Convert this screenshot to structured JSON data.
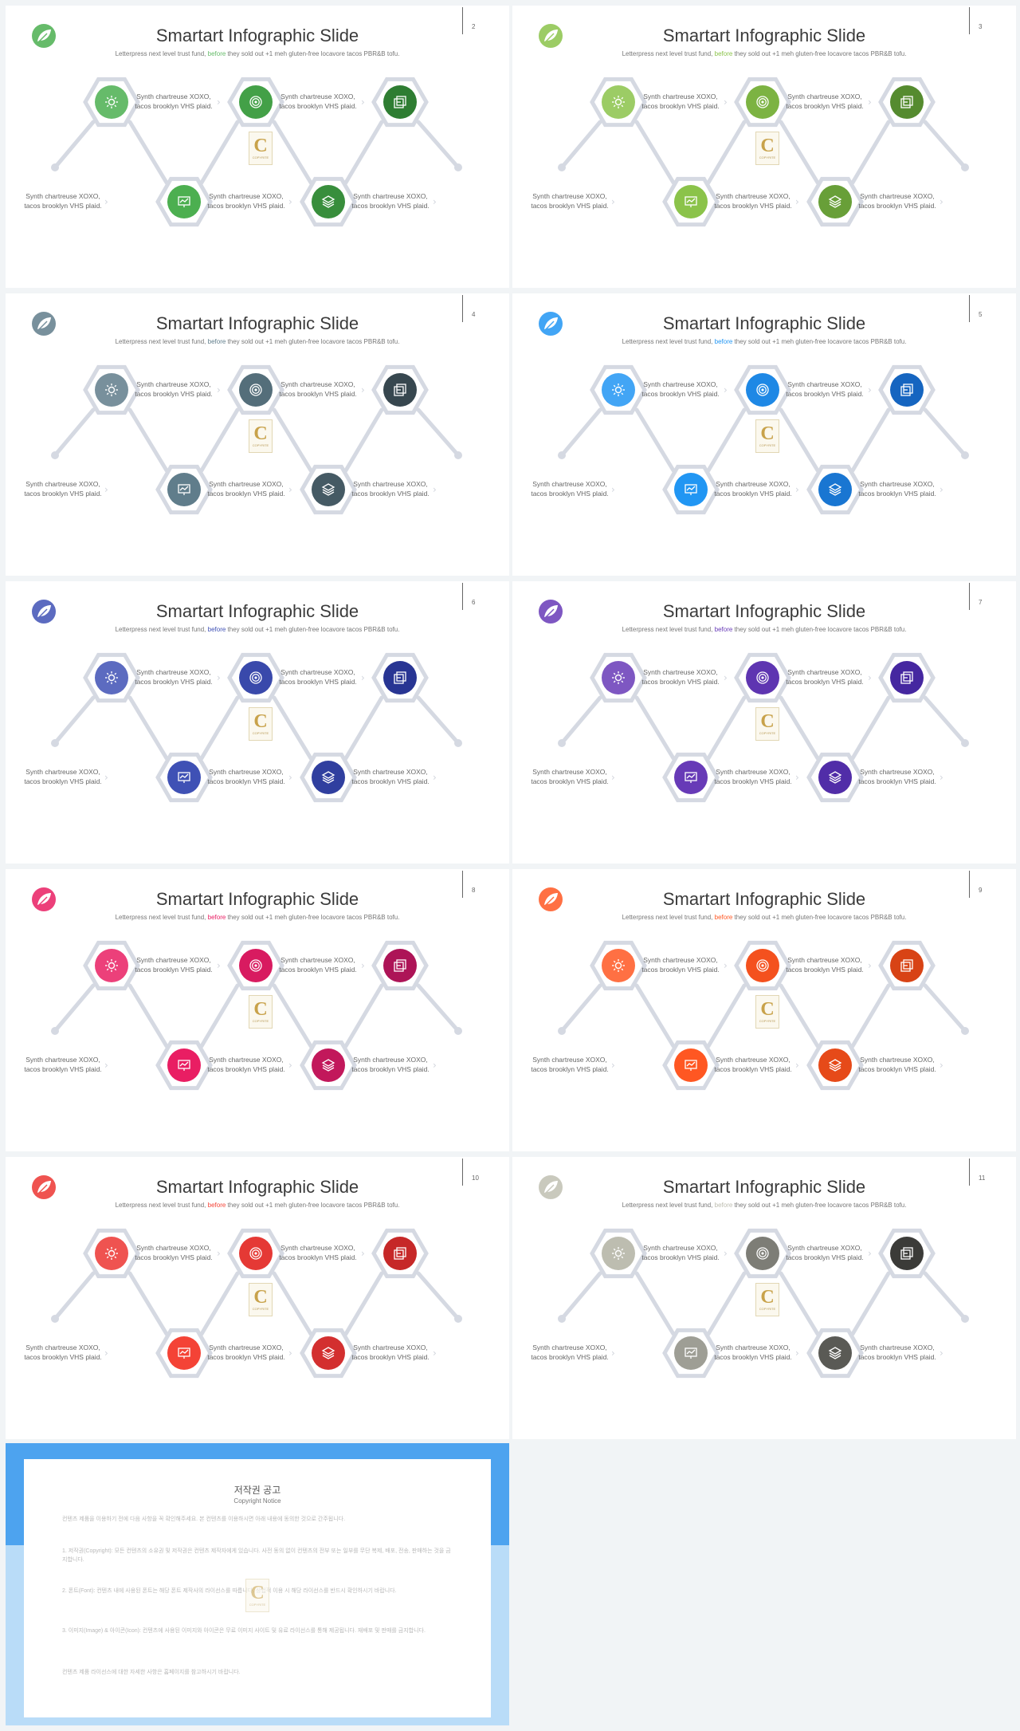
{
  "slides": [
    {
      "page": "2",
      "accent": "before",
      "colors": [
        "#66bb6a",
        "#43a047",
        "#2e7d32",
        "#4caf50",
        "#388e3c"
      ],
      "logo": "#66bb6a",
      "accentColor": "#66bb6a"
    },
    {
      "page": "3",
      "accent": "before",
      "colors": [
        "#9ccc65",
        "#7cb342",
        "#558b2f",
        "#8bc34a",
        "#689f38"
      ],
      "logo": "#9ccc65",
      "accentColor": "#8bc34a"
    },
    {
      "page": "4",
      "accent": "before",
      "colors": [
        "#78909c",
        "#546e7a",
        "#37474f",
        "#607d8b",
        "#455a64"
      ],
      "logo": "#78909c",
      "accentColor": "#607d8b"
    },
    {
      "page": "5",
      "accent": "before",
      "colors": [
        "#42a5f5",
        "#1e88e5",
        "#1565c0",
        "#2196f3",
        "#1976d2"
      ],
      "logo": "#42a5f5",
      "accentColor": "#2196f3"
    },
    {
      "page": "6",
      "accent": "before",
      "colors": [
        "#5c6bc0",
        "#3949ab",
        "#283593",
        "#3f51b5",
        "#303f9f"
      ],
      "logo": "#5c6bc0",
      "accentColor": "#3f51b5"
    },
    {
      "page": "7",
      "accent": "before",
      "colors": [
        "#7e57c2",
        "#5e35b1",
        "#4527a0",
        "#673ab7",
        "#512da8"
      ],
      "logo": "#7e57c2",
      "accentColor": "#673ab7"
    },
    {
      "page": "8",
      "accent": "before",
      "colors": [
        "#ec407a",
        "#d81b60",
        "#ad1457",
        "#e91e63",
        "#c2185b"
      ],
      "logo": "#ec407a",
      "accentColor": "#e91e63"
    },
    {
      "page": "9",
      "accent": "before",
      "colors": [
        "#ff7043",
        "#f4511e",
        "#d84315",
        "#ff5722",
        "#e64a19"
      ],
      "logo": "#ff7043",
      "accentColor": "#ff5722"
    },
    {
      "page": "10",
      "accent": "before",
      "colors": [
        "#ef5350",
        "#e53935",
        "#c62828",
        "#f44336",
        "#d32f2f"
      ],
      "logo": "#ef5350",
      "accentColor": "#f44336"
    },
    {
      "page": "11",
      "accent": "before",
      "colors": [
        "#bdbdb0",
        "#7d7d76",
        "#3b3b38",
        "#9e9e95",
        "#5a5a55"
      ],
      "logo": "#c9c9bd",
      "accentColor": "#bdbdb0"
    }
  ],
  "common": {
    "title": "Smartart Infographic Slide",
    "subtitle_pre": "Letterpress next level trust fund, ",
    "subtitle_accent": "before",
    "subtitle_post": " they sold out +1 meh gluten-free locavore tacos PBR&B tofu.",
    "label_line1": "Synth chartreuse XOXO,",
    "label_line2": "tacos brooklyn VHS plaid.",
    "arrow": "›",
    "badge_letter": "C",
    "badge_text": "COPYRITE"
  },
  "notice": {
    "title": "저작권 공고",
    "subtitle": "Copyright Notice",
    "paragraphs": [
      "컨텐츠 제품을 이용하기 전에 다음 사항을 꼭 확인해주세요. 본 컨텐츠를 이용하시면 아래 내용에 동의한 것으로 간주됩니다.",
      "1. 저작권(Copyright): 모든 컨텐츠의 소유권 및 저작권은 컨텐츠 제작자에게 있습니다. 사전 동의 없이 컨텐츠의 전부 또는 일부를 무단 복제, 배포, 전송, 판매하는 것을 금지합니다.",
      "2. 폰트(Font): 컨텐츠 내에 사용된 폰트는 해당 폰트 제작사의 라이선스를 따릅니다. 상업적 이용 시 해당 라이선스를 반드시 확인하시기 바랍니다.",
      "3. 이미지(Image) & 아이콘(Icon): 컨텐츠에 사용된 이미지와 아이콘은 무료 이미지 사이트 및 유료 라이선스를 통해 제공됩니다. 재배포 및 판매를 금지합니다.",
      "컨텐츠 제품 라이선스에 대한 자세한 사항은 홈페이지를 참고하시기 바랍니다."
    ]
  }
}
